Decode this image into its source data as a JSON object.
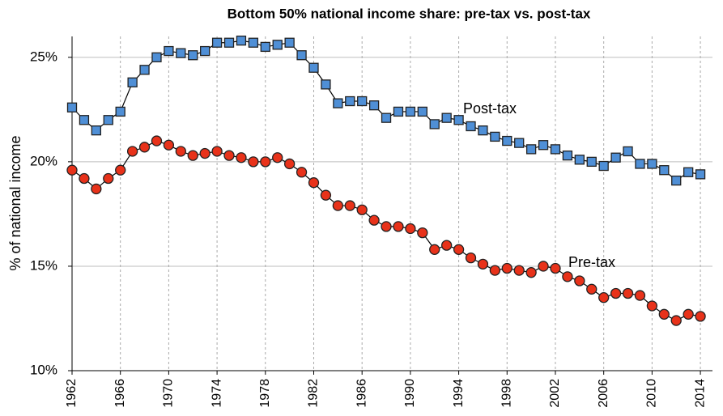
{
  "chart_data": {
    "type": "line",
    "title": "Bottom 50% national income share: pre-tax vs. post-tax",
    "y_label": "% of national income",
    "x": [
      1962,
      1963,
      1964,
      1965,
      1966,
      1967,
      1968,
      1969,
      1970,
      1971,
      1972,
      1973,
      1974,
      1975,
      1976,
      1977,
      1978,
      1979,
      1980,
      1981,
      1982,
      1983,
      1984,
      1985,
      1986,
      1987,
      1988,
      1989,
      1990,
      1991,
      1992,
      1993,
      1994,
      1995,
      1996,
      1997,
      1998,
      1999,
      2000,
      2001,
      2002,
      2003,
      2004,
      2005,
      2006,
      2007,
      2008,
      2009,
      2010,
      2011,
      2012,
      2013,
      2014
    ],
    "series": [
      {
        "name": "Post-tax",
        "color": "#4f8fd6",
        "marker": "square",
        "values": [
          22.6,
          22.0,
          21.5,
          22.0,
          22.4,
          23.8,
          24.4,
          25.0,
          25.3,
          25.2,
          25.1,
          25.3,
          25.7,
          25.7,
          25.8,
          25.7,
          25.5,
          25.6,
          25.7,
          25.1,
          24.5,
          23.7,
          22.8,
          22.9,
          22.9,
          22.7,
          22.1,
          22.4,
          22.4,
          22.4,
          21.8,
          22.1,
          22.0,
          21.7,
          21.5,
          21.2,
          21.0,
          20.9,
          20.6,
          20.8,
          20.6,
          20.3,
          20.1,
          20.0,
          19.8,
          20.2,
          20.5,
          19.9,
          19.9,
          19.6,
          19.1,
          19.5,
          19.4
        ]
      },
      {
        "name": "Pre-tax",
        "color": "#e8321a",
        "marker": "circle",
        "values": [
          19.6,
          19.2,
          18.7,
          19.2,
          19.6,
          20.5,
          20.7,
          21.0,
          20.8,
          20.5,
          20.3,
          20.4,
          20.5,
          20.3,
          20.2,
          20.0,
          20.0,
          20.2,
          19.9,
          19.5,
          19.0,
          18.4,
          17.9,
          17.9,
          17.7,
          17.2,
          16.9,
          16.9,
          16.8,
          16.6,
          15.8,
          16.0,
          15.8,
          15.4,
          15.1,
          14.8,
          14.9,
          14.8,
          14.7,
          15.0,
          14.9,
          14.5,
          14.3,
          13.9,
          13.5,
          13.7,
          13.7,
          13.6,
          13.1,
          12.7,
          12.4,
          12.7,
          12.6
        ]
      }
    ],
    "xlim": [
      1962,
      2015
    ],
    "xticks": [
      1962,
      1966,
      1970,
      1974,
      1978,
      1982,
      1986,
      1990,
      1994,
      1998,
      2002,
      2006,
      2010,
      2014
    ],
    "ylim": [
      10,
      26
    ],
    "yticks": [
      {
        "value": 10,
        "label": "10%"
      },
      {
        "value": 15,
        "label": "15%"
      },
      {
        "value": 20,
        "label": "20%"
      },
      {
        "value": 25,
        "label": "25%"
      }
    ],
    "grid": true
  }
}
